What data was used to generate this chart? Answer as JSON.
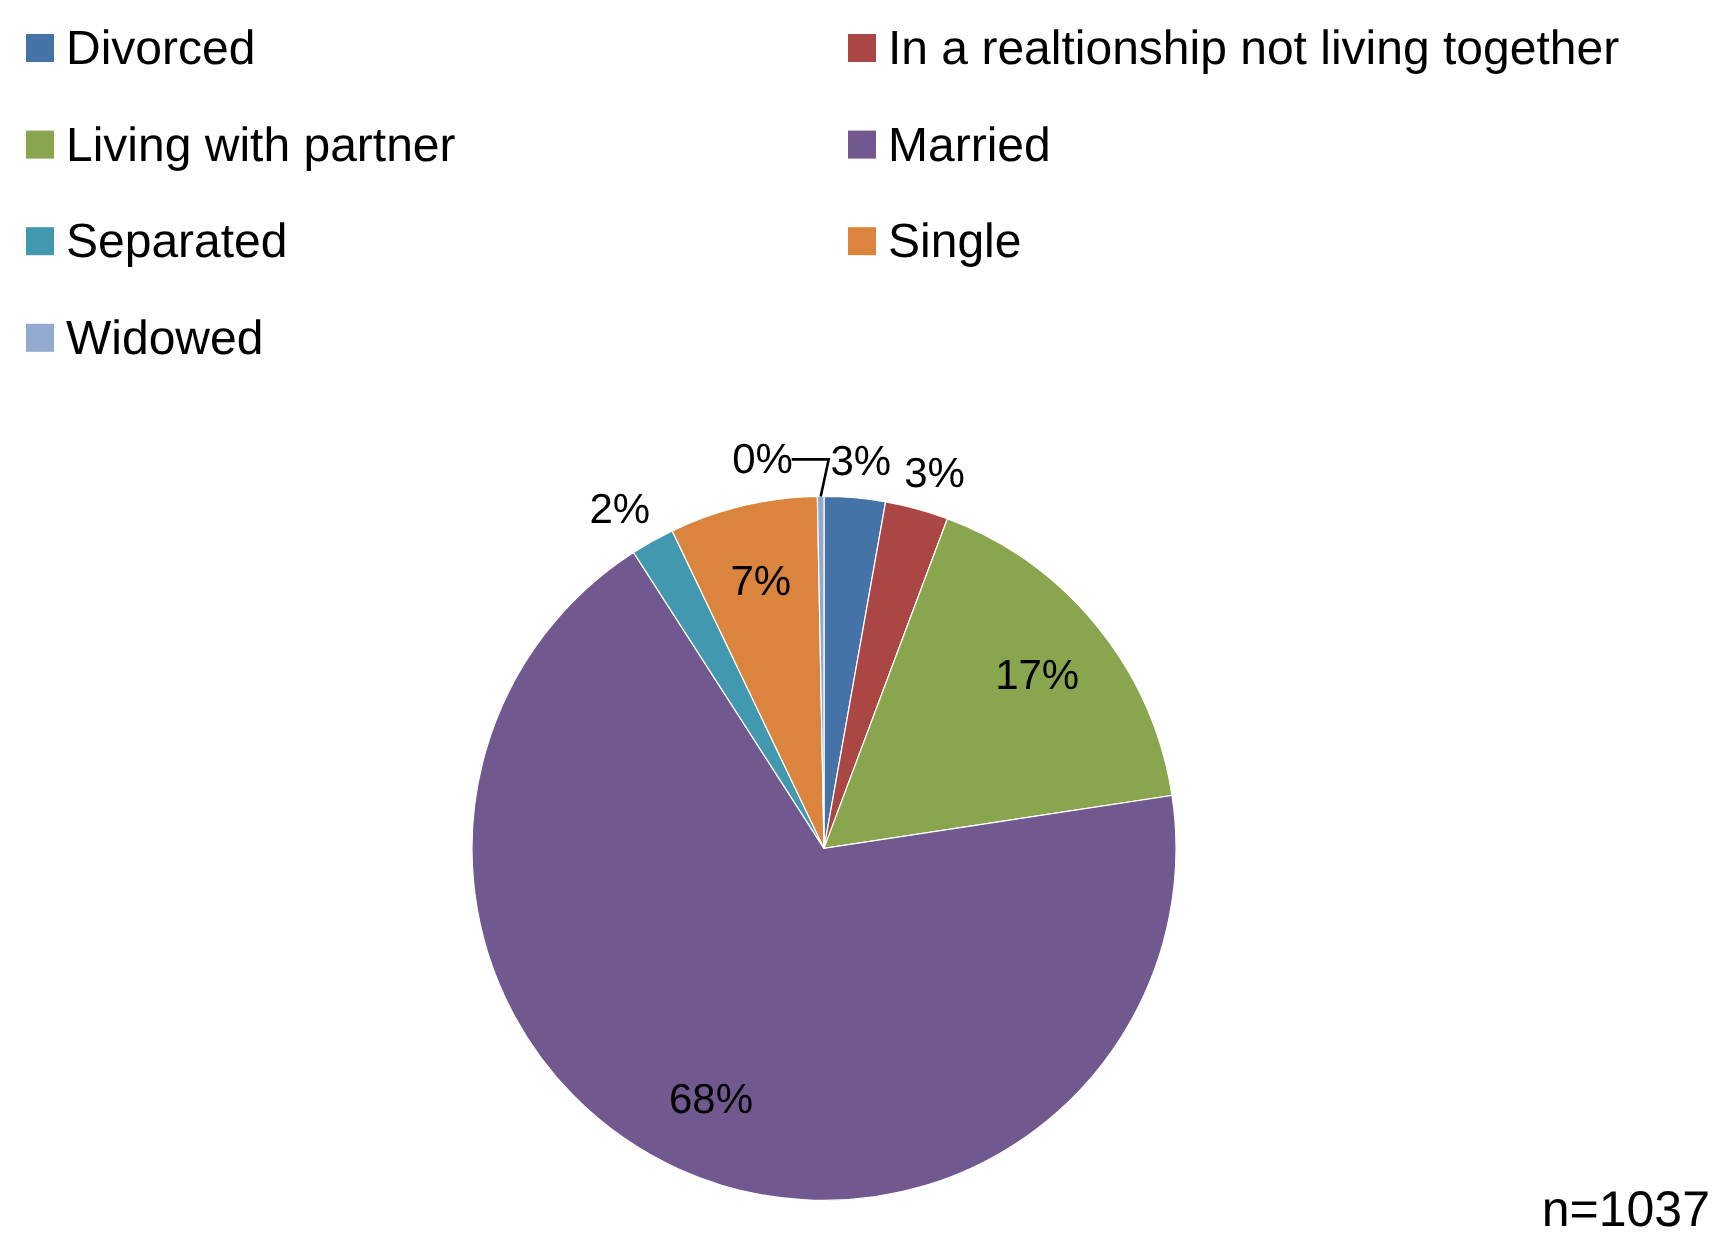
{
  "chart_data": {
    "type": "pie",
    "categories": [
      "Divorced",
      "In a realtionship not living together",
      "Living with partner",
      "Married",
      "Separated",
      "Single",
      "Widowed"
    ],
    "values": [
      2.8,
      2.9,
      16.9,
      68.3,
      2.0,
      6.8,
      0.3
    ],
    "colors": [
      "#4572a7",
      "#aa4643",
      "#89a54e",
      "#71588f",
      "#4198af",
      "#db843d",
      "#93a9cf"
    ],
    "value_labels": [
      "3%",
      "3%",
      "17%",
      "68%",
      "2%",
      "7%",
      "0%"
    ],
    "legend": "top",
    "annotations": [
      "n=1037"
    ]
  }
}
